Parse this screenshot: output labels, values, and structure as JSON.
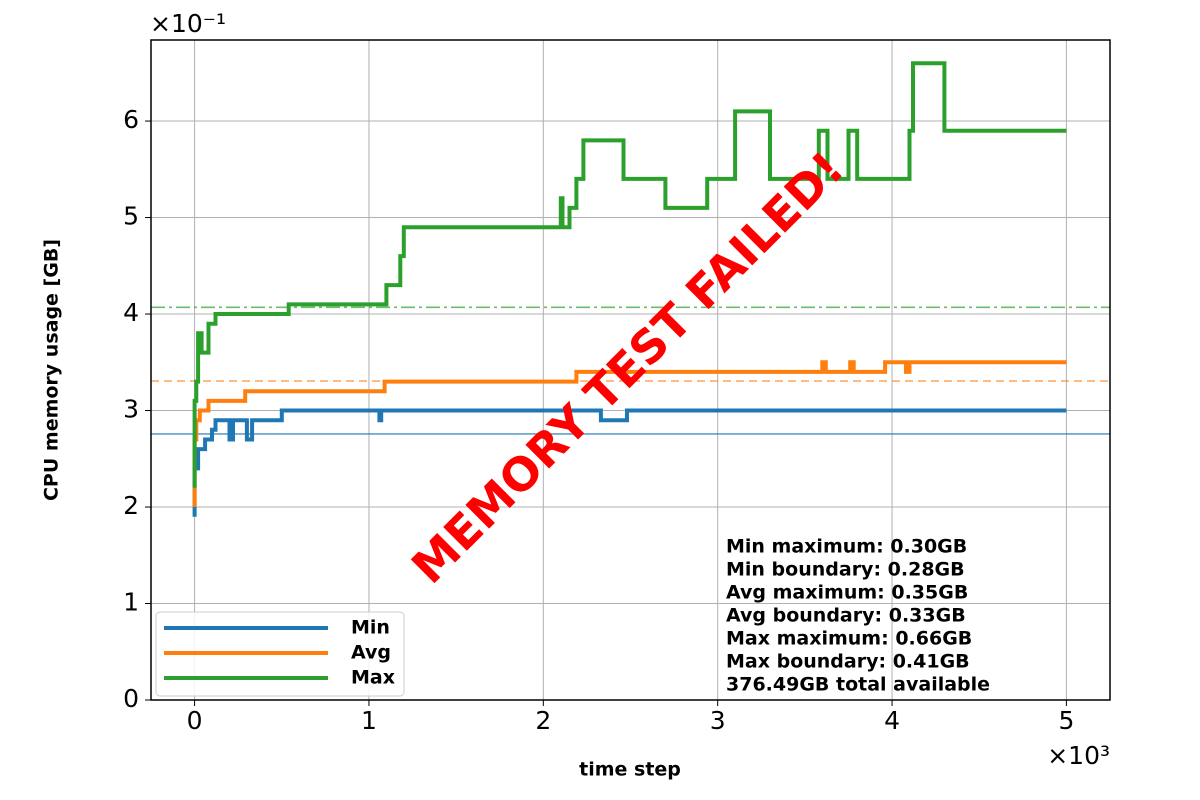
{
  "chart_data": {
    "type": "line",
    "x_label": "time step",
    "y_label": "CPU memory usage [GB]",
    "x_offset_label": "×10³",
    "y_offset_label": "×10⁻¹",
    "watermark": "MEMORY TEST FAILED!",
    "watermark_color": "#ff0000",
    "xlim": [
      -250,
      5250
    ],
    "ylim": [
      0,
      0.684
    ],
    "xticks": [
      0,
      {
        "value": 1000,
        "label": "1"
      },
      {
        "value": 2000,
        "label": "2"
      },
      {
        "value": 3000,
        "label": "3"
      },
      {
        "value": 4000,
        "label": "4"
      },
      {
        "value": 5000,
        "label": "5"
      }
    ],
    "yticks": [
      0,
      {
        "value": 0.1,
        "label": "1"
      },
      {
        "value": 0.2,
        "label": "2"
      },
      {
        "value": 0.3,
        "label": "3"
      },
      {
        "value": 0.4,
        "label": "4"
      },
      {
        "value": 0.5,
        "label": "5"
      },
      {
        "value": 0.6,
        "label": "6"
      }
    ],
    "grid": true,
    "legend": "lower left",
    "series": [
      {
        "name": "Min",
        "color": "#1f77b4",
        "boundary": 0.2757,
        "x": [
          0,
          0,
          20,
          20,
          60,
          60,
          100,
          100,
          120,
          120,
          200,
          200,
          220,
          220,
          300,
          300,
          330,
          330,
          500,
          500,
          1060,
          1060,
          1070,
          1070,
          2330,
          2330,
          2480,
          2480,
          5000
        ],
        "values": [
          0.19,
          0.24,
          0.24,
          0.26,
          0.26,
          0.27,
          0.27,
          0.28,
          0.28,
          0.29,
          0.29,
          0.27,
          0.27,
          0.29,
          0.29,
          0.27,
          0.27,
          0.29,
          0.29,
          0.3,
          0.3,
          0.29,
          0.29,
          0.3,
          0.3,
          0.29,
          0.29,
          0.3,
          0.3
        ]
      },
      {
        "name": "Avg",
        "color": "#ff7f0e",
        "boundary": 0.3306,
        "x": [
          0,
          0,
          10,
          10,
          30,
          30,
          80,
          80,
          290,
          290,
          1090,
          1090,
          2190,
          2190,
          3600,
          3600,
          3620,
          3620,
          3760,
          3760,
          3780,
          3780,
          3960,
          3960,
          4080,
          4080,
          4100,
          4100,
          5000
        ],
        "values": [
          0.2,
          0.27,
          0.27,
          0.29,
          0.29,
          0.3,
          0.3,
          0.31,
          0.31,
          0.32,
          0.32,
          0.33,
          0.33,
          0.34,
          0.34,
          0.35,
          0.35,
          0.34,
          0.34,
          0.35,
          0.35,
          0.34,
          0.34,
          0.35,
          0.35,
          0.34,
          0.34,
          0.35,
          0.35
        ]
      },
      {
        "name": "Max",
        "color": "#2ca02c",
        "boundary": 0.407,
        "x": [
          0,
          0,
          10,
          10,
          20,
          20,
          40,
          40,
          80,
          80,
          120,
          120,
          540,
          540,
          1100,
          1100,
          1180,
          1180,
          1200,
          1200,
          2100,
          2100,
          2110,
          2110,
          2150,
          2150,
          2190,
          2190,
          2230,
          2230,
          2460,
          2460,
          2700,
          2700,
          2940,
          2940,
          3100,
          3100,
          3300,
          3300,
          3580,
          3580,
          3630,
          3630,
          3750,
          3750,
          3800,
          3800,
          4100,
          4100,
          4120,
          4120,
          4300,
          4300,
          5000
        ],
        "values": [
          0.22,
          0.31,
          0.31,
          0.33,
          0.33,
          0.38,
          0.38,
          0.36,
          0.36,
          0.39,
          0.39,
          0.4,
          0.4,
          0.41,
          0.41,
          0.43,
          0.43,
          0.46,
          0.46,
          0.49,
          0.49,
          0.52,
          0.52,
          0.49,
          0.49,
          0.51,
          0.51,
          0.54,
          0.54,
          0.58,
          0.58,
          0.54,
          0.54,
          0.51,
          0.51,
          0.54,
          0.54,
          0.61,
          0.61,
          0.54,
          0.54,
          0.59,
          0.59,
          0.54,
          0.54,
          0.59,
          0.59,
          0.54,
          0.54,
          0.59,
          0.59,
          0.66,
          0.66,
          0.59,
          0.59
        ]
      }
    ],
    "annotation_lines": [
      "Min  maximum: 0.30GB",
      "Min  boundary: 0.28GB",
      "Avg  maximum: 0.35GB",
      "Avg  boundary: 0.33GB",
      "Max  maximum: 0.66GB",
      "Max  boundary: 0.41GB",
      "376.49GB total available"
    ]
  }
}
